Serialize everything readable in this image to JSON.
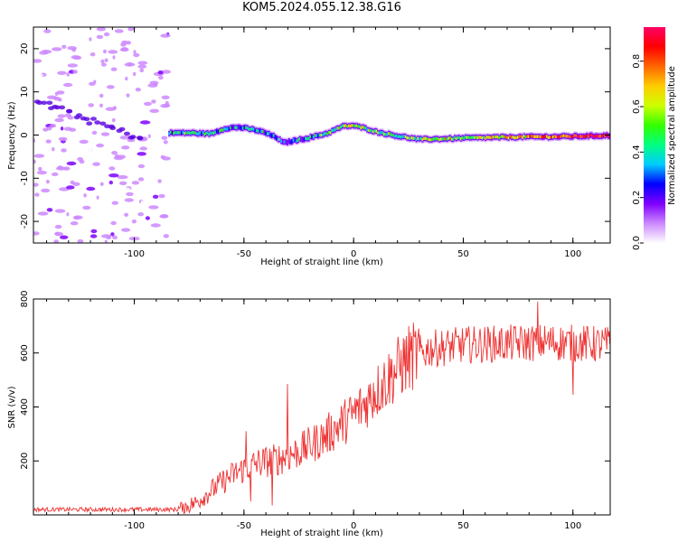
{
  "title": "KOM5.2024.055.12.38.G16",
  "chart_data": [
    {
      "type": "heatmap",
      "xlabel": "Height of straight line (km)",
      "ylabel": "Frequency (Hz)",
      "xlim": [
        -146,
        117
      ],
      "ylim": [
        -25,
        25
      ],
      "xticks": [
        -100,
        -50,
        0,
        50,
        100
      ],
      "yticks": [
        -20,
        -10,
        0,
        10,
        20
      ],
      "colorbar": {
        "label": "Normalized spectral amplitude",
        "range": [
          0,
          0.95
        ],
        "ticks": [
          "0.0",
          "0.2",
          "0.4",
          "0.6",
          "0.8"
        ],
        "tick_values": [
          0,
          0.2,
          0.4,
          0.6,
          0.8
        ],
        "colors": [
          "#ffffff",
          "#cc88ff",
          "#7f00ff",
          "#0000ff",
          "#00ccff",
          "#00ff80",
          "#33ff00",
          "#ccff00",
          "#ffcc00",
          "#ff6600",
          "#ff0000",
          "#ff0066"
        ]
      },
      "ridge": {
        "x": [
          -84,
          -75,
          -65,
          -58,
          -52,
          -45,
          -40,
          -35,
          -32,
          -28,
          -20,
          -12,
          -5,
          0,
          5,
          10,
          20,
          30,
          40,
          50,
          60,
          70,
          80,
          90,
          100,
          110,
          117
        ],
        "y": [
          0.5,
          0.5,
          0.3,
          1.6,
          1.8,
          1.2,
          0.5,
          -0.6,
          -1.8,
          -1.4,
          -0.6,
          0.4,
          2.0,
          2.2,
          1.6,
          0.8,
          -0.2,
          -1.0,
          -0.9,
          -0.7,
          -0.6,
          -0.5,
          -0.4,
          -0.4,
          -0.3,
          -0.2,
          -0.1
        ],
        "amp": [
          0.35,
          0.45,
          0.4,
          0.35,
          0.35,
          0.4,
          0.35,
          0.3,
          0.2,
          0.3,
          0.4,
          0.45,
          0.55,
          0.6,
          0.55,
          0.5,
          0.45,
          0.5,
          0.6,
          0.55,
          0.6,
          0.65,
          0.7,
          0.75,
          0.85,
          0.95,
          0.9
        ]
      },
      "noise_x_range": [
        -146,
        -84
      ]
    },
    {
      "type": "line",
      "xlabel": "Height of straight line (km)",
      "ylabel": "SNR (v/v)",
      "xlim": [
        -146,
        117
      ],
      "ylim": [
        0,
        800
      ],
      "xticks": [
        -100,
        -50,
        0,
        50,
        100
      ],
      "yticks": [
        200,
        400,
        600,
        800
      ],
      "color": "#ee3333",
      "envelope": {
        "x": [
          -146,
          -80,
          -72,
          -65,
          -55,
          -45,
          -35,
          -25,
          -15,
          -5,
          5,
          15,
          25,
          35,
          50,
          70,
          90,
          117
        ],
        "y": [
          20,
          20,
          45,
          90,
          150,
          190,
          205,
          235,
          280,
          340,
          410,
          500,
          580,
          615,
          630,
          635,
          640,
          630
        ]
      },
      "spikes": [
        {
          "x": -30,
          "y": 485
        },
        {
          "x": -37,
          "y": 35
        },
        {
          "x": -49,
          "y": 310
        },
        {
          "x": -47,
          "y": 50
        },
        {
          "x": 9,
          "y": 490
        },
        {
          "x": 100,
          "y": 445
        },
        {
          "x": 84,
          "y": 790
        }
      ]
    }
  ]
}
